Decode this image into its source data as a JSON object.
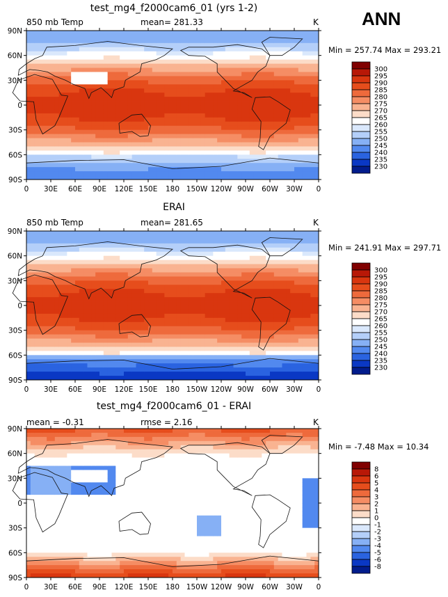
{
  "season": "ANN",
  "chart_data": [
    {
      "type": "heatmap",
      "title": "test_mg4_f2000cam6_01 (yrs 1-2)",
      "variable_label": "850 mb Temp",
      "stat_label": "mean= 281.33",
      "units": "K",
      "minmax": "Min = 257.74 Max = 293.21",
      "x_ticks": [
        "0",
        "30E",
        "60E",
        "90E",
        "120E",
        "150E",
        "180",
        "150W",
        "120W",
        "90W",
        "60W",
        "30W",
        "0"
      ],
      "y_ticks": [
        "90N",
        "60N",
        "30N",
        "0",
        "30S",
        "60S",
        "90S"
      ],
      "legend_levels": [
        "300",
        "295",
        "290",
        "285",
        "280",
        "275",
        "270",
        "265",
        "260",
        "255",
        "250",
        "245",
        "240",
        "235",
        "230"
      ],
      "legend_colors": [
        "#800000",
        "#b81807",
        "#d9360f",
        "#e64d1c",
        "#ee6a3c",
        "#f58d64",
        "#f9b391",
        "#fcdcc8",
        "#ffffff",
        "#dae8fc",
        "#b4cff9",
        "#86b0f5",
        "#5289ef",
        "#2a63e0",
        "#0a38c4",
        "#021c8c"
      ],
      "field": "mean"
    },
    {
      "type": "heatmap",
      "title": "ERAI",
      "variable_label": "850 mb Temp",
      "stat_label": "mean= 281.65",
      "units": "K",
      "minmax": "Min = 241.91 Max = 297.71",
      "x_ticks": [
        "0",
        "30E",
        "60E",
        "90E",
        "120E",
        "150E",
        "180",
        "150W",
        "120W",
        "90W",
        "60W",
        "30W",
        "0"
      ],
      "y_ticks": [
        "90N",
        "60N",
        "30N",
        "0",
        "30S",
        "60S",
        "90S"
      ],
      "legend_levels": [
        "300",
        "295",
        "290",
        "285",
        "280",
        "275",
        "270",
        "265",
        "260",
        "255",
        "250",
        "245",
        "240",
        "235",
        "230"
      ],
      "legend_colors": [
        "#800000",
        "#b81807",
        "#d9360f",
        "#e64d1c",
        "#ee6a3c",
        "#f58d64",
        "#f9b391",
        "#fcdcc8",
        "#ffffff",
        "#dae8fc",
        "#b4cff9",
        "#86b0f5",
        "#5289ef",
        "#2a63e0",
        "#0a38c4",
        "#021c8c"
      ],
      "field": "mean"
    },
    {
      "type": "heatmap",
      "title": "test_mg4_f2000cam6_01 - ERAI",
      "variable_label": "mean =  -0.31",
      "stat_label": "rmse =    2.16",
      "units": "K",
      "minmax": "Min =   -7.48 Max =   10.34",
      "x_ticks": [
        "0",
        "30E",
        "60E",
        "90E",
        "120E",
        "150E",
        "180",
        "150W",
        "120W",
        "90W",
        "60W",
        "30W",
        "0"
      ],
      "y_ticks": [
        "90N",
        "60N",
        "30N",
        "0",
        "30S",
        "60S",
        "90S"
      ],
      "legend_levels": [
        "8",
        "6",
        "5",
        "4",
        "3",
        "2",
        "1",
        "0",
        "-1",
        "-2",
        "-3",
        "-4",
        "-5",
        "-6",
        "-8"
      ],
      "legend_colors": [
        "#800000",
        "#b81807",
        "#d9360f",
        "#e64d1c",
        "#ee6a3c",
        "#f58d64",
        "#f9b391",
        "#fcdcc8",
        "#ffffff",
        "#dae8fc",
        "#b4cff9",
        "#86b0f5",
        "#5289ef",
        "#2a63e0",
        "#0a38c4",
        "#021c8c"
      ],
      "field": "diff"
    }
  ]
}
